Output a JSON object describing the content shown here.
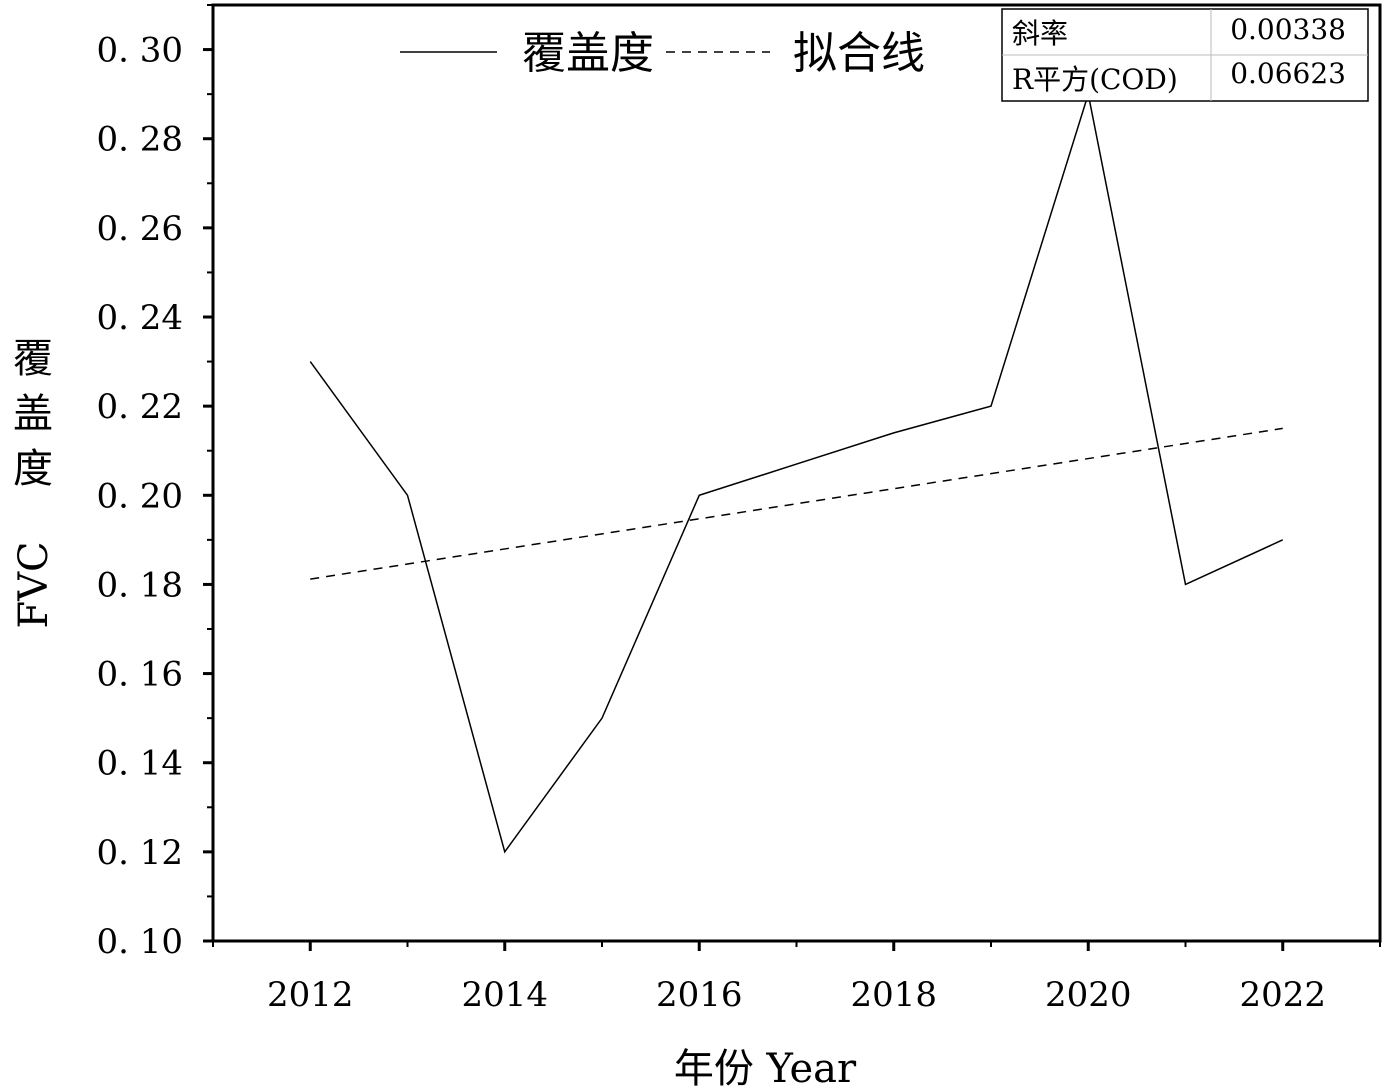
{
  "chart_data": {
    "type": "line",
    "xlabel": "年份 Year",
    "ylabel_cn": [
      "覆",
      "盖",
      "度"
    ],
    "ylabel_en": "FVC",
    "xlim": [
      2011,
      2023
    ],
    "ylim": [
      0.1,
      0.31
    ],
    "x_ticks": [
      2012,
      2014,
      2016,
      2018,
      2020,
      2022
    ],
    "y_ticks": [
      "0.10",
      "0.12",
      "0.14",
      "0.16",
      "0.18",
      "0.20",
      "0.22",
      "0.24",
      "0.26",
      "0.28",
      "0.30"
    ],
    "series": [
      {
        "name": "覆盖度",
        "style": "solid",
        "x": [
          2012,
          2013,
          2014,
          2015,
          2016,
          2017,
          2018,
          2019,
          2020,
          2021,
          2022
        ],
        "y": [
          0.23,
          0.2,
          0.12,
          0.15,
          0.2,
          0.207,
          0.214,
          0.22,
          0.29,
          0.18,
          0.19
        ]
      },
      {
        "name": "拟合线",
        "style": "dashed",
        "x": [
          2012,
          2022
        ],
        "y": [
          0.1812,
          0.215
        ]
      }
    ],
    "legend": "top",
    "grid": false,
    "stats_table": [
      {
        "label": "斜率",
        "value": "0.00338"
      },
      {
        "label": "R平方(COD)",
        "value": "0.06623"
      }
    ]
  },
  "colors": {
    "line": "#000000",
    "background": "#ffffff"
  }
}
